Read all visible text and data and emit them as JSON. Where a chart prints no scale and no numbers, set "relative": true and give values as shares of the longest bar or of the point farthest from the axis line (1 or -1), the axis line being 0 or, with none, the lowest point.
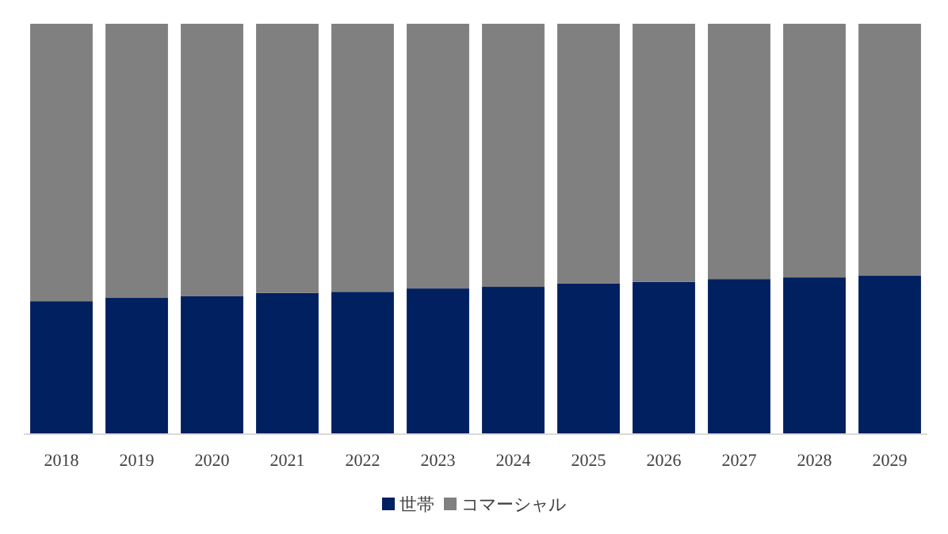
{
  "chart_data": {
    "type": "bar",
    "stacked": true,
    "relative": true,
    "legend": "bottom",
    "categories": [
      "2018",
      "2019",
      "2020",
      "2021",
      "2022",
      "2023",
      "2024",
      "2025",
      "2026",
      "2027",
      "2028",
      "2029"
    ],
    "series": [
      {
        "name": "世帯",
        "color": "#002060",
        "values": [
          0.324,
          0.332,
          0.336,
          0.344,
          0.347,
          0.355,
          0.359,
          0.367,
          0.371,
          0.378,
          0.382,
          0.386
        ]
      },
      {
        "name": "コマーシャル",
        "color": "#808080",
        "values": [
          0.676,
          0.668,
          0.664,
          0.656,
          0.653,
          0.645,
          0.641,
          0.633,
          0.629,
          0.622,
          0.618,
          0.614
        ]
      }
    ]
  }
}
